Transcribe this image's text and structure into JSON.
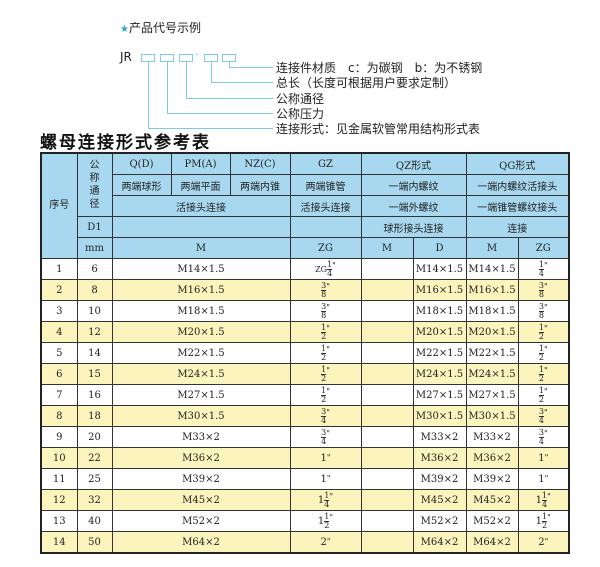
{
  "example": {
    "title": "产品代号示例",
    "code_prefix": "JR",
    "dash": "-",
    "labels": [
      "连接件材质　c：为碳钢　b：为不锈钢",
      "总长（长度可根据用户要求定制）",
      "公称通径",
      "公称压力",
      "连接形式：见金属软管常用结构形式表"
    ],
    "accent": "#2aa7d6"
  },
  "table_title": "螺母连接形式参考表",
  "header": {
    "seq": "序号",
    "dn": "公称通径",
    "qd": "Q(D)",
    "pm": "PM(A)",
    "nz": "NZ(C)",
    "gz": "GZ",
    "qz": "QZ形式",
    "qg": "QG形式",
    "qd_desc": "两端球形",
    "pm_desc": "两端平面",
    "nz_desc": "两端内锥",
    "gz_desc": "两端锥管",
    "qz_desc1": "一端内螺纹",
    "qg_desc1": "一端内螺纹活接头",
    "union1": "活接头连接",
    "union2": "活接头连接",
    "qz_desc2": "一端外螺纹",
    "qg_desc2": "一端锥管螺纹接头",
    "d1": "D1",
    "qz_desc3": "球形接头连接",
    "qg_desc3": "连接",
    "mm": "mm",
    "m": "M",
    "zg": "ZG",
    "qz_m": "M",
    "qz_d": "D",
    "qg_m": "M",
    "qg_zg": "ZG"
  },
  "rows": [
    {
      "no": "1",
      "dn": "6",
      "m": "M14×1.5",
      "zg": {
        "pre": "ZG",
        "whole": "",
        "num": "1",
        "den": "4",
        "unit": "\""
      },
      "qz_m": "",
      "qz_d": "M14×1.5",
      "qg_m": "M14×1.5",
      "qg_zg": {
        "pre": "",
        "whole": "",
        "num": "1",
        "den": "4",
        "unit": "\""
      }
    },
    {
      "no": "2",
      "dn": "8",
      "m": "M16×1.5",
      "zg": {
        "pre": "",
        "whole": "",
        "num": "3",
        "den": "8",
        "unit": "\""
      },
      "qz_m": "",
      "qz_d": "M16×1.5",
      "qg_m": "M16×1.5",
      "qg_zg": {
        "pre": "",
        "whole": "",
        "num": "3",
        "den": "8",
        "unit": "\""
      }
    },
    {
      "no": "3",
      "dn": "10",
      "m": "M18×1.5",
      "zg": {
        "pre": "",
        "whole": "",
        "num": "3",
        "den": "8",
        "unit": "\""
      },
      "qz_m": "",
      "qz_d": "M18×1.5",
      "qg_m": "M18×1.5",
      "qg_zg": {
        "pre": "",
        "whole": "",
        "num": "3",
        "den": "8",
        "unit": "\""
      }
    },
    {
      "no": "4",
      "dn": "12",
      "m": "M20×1.5",
      "zg": {
        "pre": "",
        "whole": "",
        "num": "1",
        "den": "2",
        "unit": "\""
      },
      "qz_m": "",
      "qz_d": "M20×1.5",
      "qg_m": "M20×1.5",
      "qg_zg": {
        "pre": "",
        "whole": "",
        "num": "1",
        "den": "2",
        "unit": "\""
      }
    },
    {
      "no": "5",
      "dn": "14",
      "m": "M22×1.5",
      "zg": {
        "pre": "",
        "whole": "",
        "num": "1",
        "den": "2",
        "unit": "\""
      },
      "qz_m": "",
      "qz_d": "M22×1.5",
      "qg_m": "M22×1.5",
      "qg_zg": {
        "pre": "",
        "whole": "",
        "num": "1",
        "den": "2",
        "unit": "\""
      }
    },
    {
      "no": "6",
      "dn": "15",
      "m": "M24×1.5",
      "zg": {
        "pre": "",
        "whole": "",
        "num": "1",
        "den": "2",
        "unit": "\""
      },
      "qz_m": "",
      "qz_d": "M24×1.5",
      "qg_m": "M24×1.5",
      "qg_zg": {
        "pre": "",
        "whole": "",
        "num": "1",
        "den": "2",
        "unit": "\""
      }
    },
    {
      "no": "7",
      "dn": "16",
      "m": "M27×1.5",
      "zg": {
        "pre": "",
        "whole": "",
        "num": "1",
        "den": "2",
        "unit": "\""
      },
      "qz_m": "",
      "qz_d": "M27×1.5",
      "qg_m": "M27×1.5",
      "qg_zg": {
        "pre": "",
        "whole": "",
        "num": "1",
        "den": "2",
        "unit": "\""
      }
    },
    {
      "no": "8",
      "dn": "18",
      "m": "M30×1.5",
      "zg": {
        "pre": "",
        "whole": "",
        "num": "3",
        "den": "4",
        "unit": "\""
      },
      "qz_m": "",
      "qz_d": "M30×1.5",
      "qg_m": "M30×1.5",
      "qg_zg": {
        "pre": "",
        "whole": "",
        "num": "3",
        "den": "4",
        "unit": "\""
      }
    },
    {
      "no": "9",
      "dn": "20",
      "m": "M33×2",
      "zg": {
        "pre": "",
        "whole": "",
        "num": "3",
        "den": "4",
        "unit": "\""
      },
      "qz_m": "",
      "qz_d": "M33×2",
      "qg_m": "M33×2",
      "qg_zg": {
        "pre": "",
        "whole": "",
        "num": "3",
        "den": "4",
        "unit": "\""
      }
    },
    {
      "no": "10",
      "dn": "22",
      "m": "M36×2",
      "zg": {
        "pre": "",
        "whole": "1",
        "num": "",
        "den": "",
        "unit": "\""
      },
      "qz_m": "",
      "qz_d": "M36×2",
      "qg_m": "M36×2",
      "qg_zg": {
        "pre": "",
        "whole": "1",
        "num": "",
        "den": "",
        "unit": "\""
      }
    },
    {
      "no": "11",
      "dn": "25",
      "m": "M39×2",
      "zg": {
        "pre": "",
        "whole": "1",
        "num": "",
        "den": "",
        "unit": "\""
      },
      "qz_m": "",
      "qz_d": "M39×2",
      "qg_m": "M39×2",
      "qg_zg": {
        "pre": "",
        "whole": "1",
        "num": "",
        "den": "",
        "unit": "\""
      }
    },
    {
      "no": "12",
      "dn": "32",
      "m": "M45×2",
      "zg": {
        "pre": "",
        "whole": "1",
        "num": "1",
        "den": "4",
        "unit": "\""
      },
      "qz_m": "",
      "qz_d": "M45×2",
      "qg_m": "M45×2",
      "qg_zg": {
        "pre": "",
        "whole": "1",
        "num": "1",
        "den": "4",
        "unit": "\""
      }
    },
    {
      "no": "13",
      "dn": "40",
      "m": "M52×2",
      "zg": {
        "pre": "",
        "whole": "1",
        "num": "1",
        "den": "2",
        "unit": "\""
      },
      "qz_m": "",
      "qz_d": "M52×2",
      "qg_m": "M52×2",
      "qg_zg": {
        "pre": "",
        "whole": "1",
        "num": "1",
        "den": "2",
        "unit": "\""
      }
    },
    {
      "no": "14",
      "dn": "50",
      "m": "M64×2",
      "zg": {
        "pre": "",
        "whole": "2",
        "num": "",
        "den": "",
        "unit": "\""
      },
      "qz_m": "",
      "qz_d": "M64×2",
      "qg_m": "M64×2",
      "qg_zg": {
        "pre": "",
        "whole": "2",
        "num": "",
        "den": "",
        "unit": "\""
      }
    }
  ],
  "colors": {
    "header_bg": "#a8d8f0",
    "alt_row_bg": "#fcf4bd",
    "line": "#7fcbe0"
  }
}
